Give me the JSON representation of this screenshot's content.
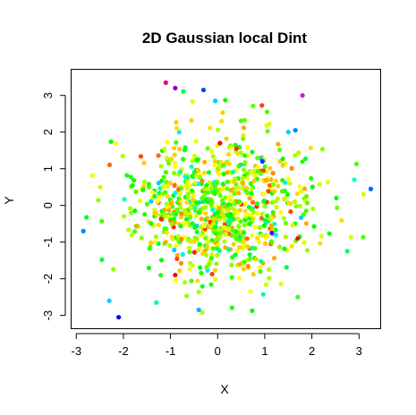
{
  "chart_data": {
    "type": "scatter",
    "title": "2D Gaussian local Dint",
    "xlabel": "X",
    "ylabel": "Y",
    "xlim": [
      -3.1,
      3.45
    ],
    "ylim": [
      -3.35,
      3.7
    ],
    "xticks": [
      -3,
      -2,
      -1,
      0,
      1,
      2,
      3
    ],
    "yticks": [
      -3,
      -2,
      -1,
      0,
      1,
      2,
      3
    ],
    "grid": false,
    "legend": "none",
    "point_color_palette": [
      "#ffff00",
      "#ccff00",
      "#66ff00",
      "#00ff00",
      "#00ff66",
      "#00ffff",
      "#0099ff",
      "#0000ff",
      "#6600ff",
      "#ff00cc",
      "#ff6600",
      "#ff0000"
    ],
    "highlight_points": [
      {
        "x": -1.1,
        "y": 3.35,
        "color": "#e6007e"
      },
      {
        "x": -0.9,
        "y": 3.2,
        "color": "#8800cc"
      },
      {
        "x": -0.3,
        "y": 3.15,
        "color": "#0044ff"
      },
      {
        "x": -0.05,
        "y": 2.85,
        "color": "#00ccff"
      },
      {
        "x": 1.8,
        "y": 3.0,
        "color": "#ee00cc"
      },
      {
        "x": 1.05,
        "y": 2.55,
        "color": "#44ff00"
      },
      {
        "x": -2.1,
        "y": -3.05,
        "color": "#0000ee"
      },
      {
        "x": -2.3,
        "y": -2.6,
        "color": "#00ccff"
      },
      {
        "x": -0.4,
        "y": -2.85,
        "color": "#00bbff"
      },
      {
        "x": -2.85,
        "y": -0.7,
        "color": "#0088ff"
      },
      {
        "x": 3.25,
        "y": 0.45,
        "color": "#0066ff"
      },
      {
        "x": 1.65,
        "y": 2.05,
        "color": "#0088ff"
      },
      {
        "x": 1.5,
        "y": 2.0,
        "color": "#00ccff"
      },
      {
        "x": 0.95,
        "y": 1.2,
        "color": "#0033ff"
      },
      {
        "x": 1.15,
        "y": -0.75,
        "color": "#5500ff"
      },
      {
        "x": 1.7,
        "y": -0.9,
        "color": "#ff0000"
      },
      {
        "x": 0.05,
        "y": 1.7,
        "color": "#ff0000"
      },
      {
        "x": 0.4,
        "y": 1.55,
        "color": "#ff3300"
      },
      {
        "x": -0.9,
        "y": -1.9,
        "color": "#ff0000"
      },
      {
        "x": 2.75,
        "y": -1.25,
        "color": "#00ff66"
      },
      {
        "x": -1.3,
        "y": -2.65,
        "color": "#00ff88"
      },
      {
        "x": 1.7,
        "y": -2.5,
        "color": "#33ff33"
      },
      {
        "x": 2.9,
        "y": 0.7,
        "color": "#00ffcc"
      }
    ],
    "cloud": {
      "n": 820,
      "mean": [
        0.05,
        0.0
      ],
      "sd": [
        0.9,
        0.95
      ],
      "seed": 7
    }
  }
}
